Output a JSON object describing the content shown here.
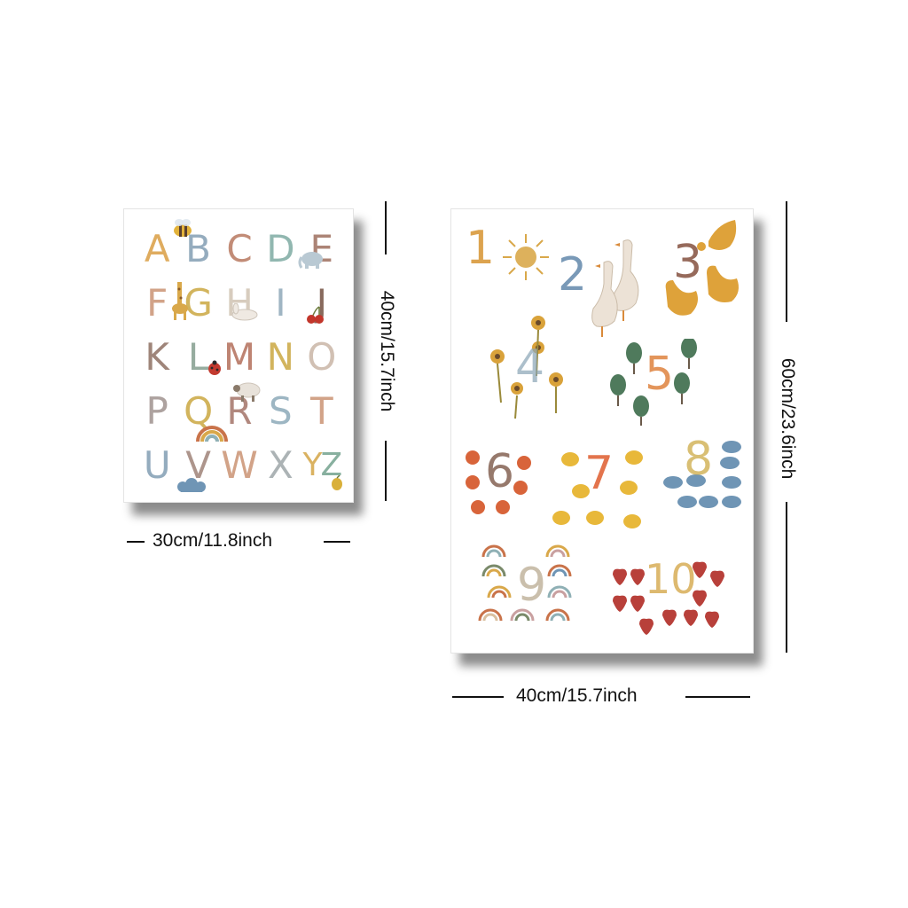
{
  "alphabet_poster": {
    "letters": [
      "A",
      "B",
      "C",
      "D",
      "E",
      "F",
      "G",
      "H",
      "I",
      "J",
      "K",
      "L",
      "M",
      "N",
      "O",
      "P",
      "Q",
      "R",
      "S",
      "T",
      "U",
      "V",
      "W",
      "X",
      "Y",
      "Z"
    ],
    "letter_colors": [
      "#d99a3c",
      "#7e9bb0",
      "#b5735a",
      "#7aa89f",
      "#9b6a58",
      "#c98f6e",
      "#c9a43a",
      "#cfc2b0",
      "#8aa5b6",
      "#6f4a3a",
      "#8b6b5d",
      "#7f9a8a",
      "#b06a55",
      "#c9a43a",
      "#c7b3a3",
      "#9c8e8a",
      "#c9a43a",
      "#a06e62",
      "#88a7b6",
      "#c98f6e",
      "#7d9ab0",
      "#9c7e74",
      "#c98f6e",
      "#9aa3a6",
      "#d2a23f",
      "#6f9f8b"
    ]
  },
  "numbers_poster": {
    "numbers": [
      "1",
      "2",
      "3",
      "4",
      "5",
      "6",
      "7",
      "8",
      "9",
      "10"
    ],
    "number_colors": [
      "#d99a3c",
      "#6b8fb0",
      "#8b5a4a",
      "#8aa5b6",
      "#e08a4a",
      "#8b6b5d",
      "#e0653a",
      "#c9a43a",
      "#b5a58a",
      "#d2a23f"
    ],
    "illustrations": [
      "sun",
      "goose",
      "hen",
      "sunflower",
      "tree",
      "apple",
      "chick",
      "cloud",
      "rainbow",
      "strawberry"
    ]
  },
  "dimensions": {
    "alpha_width": "30cm/11.8inch",
    "alpha_height": "40cm/15.7inch",
    "nums_width": "40cm/15.7inch",
    "nums_height": "60cm/23.6inch"
  }
}
